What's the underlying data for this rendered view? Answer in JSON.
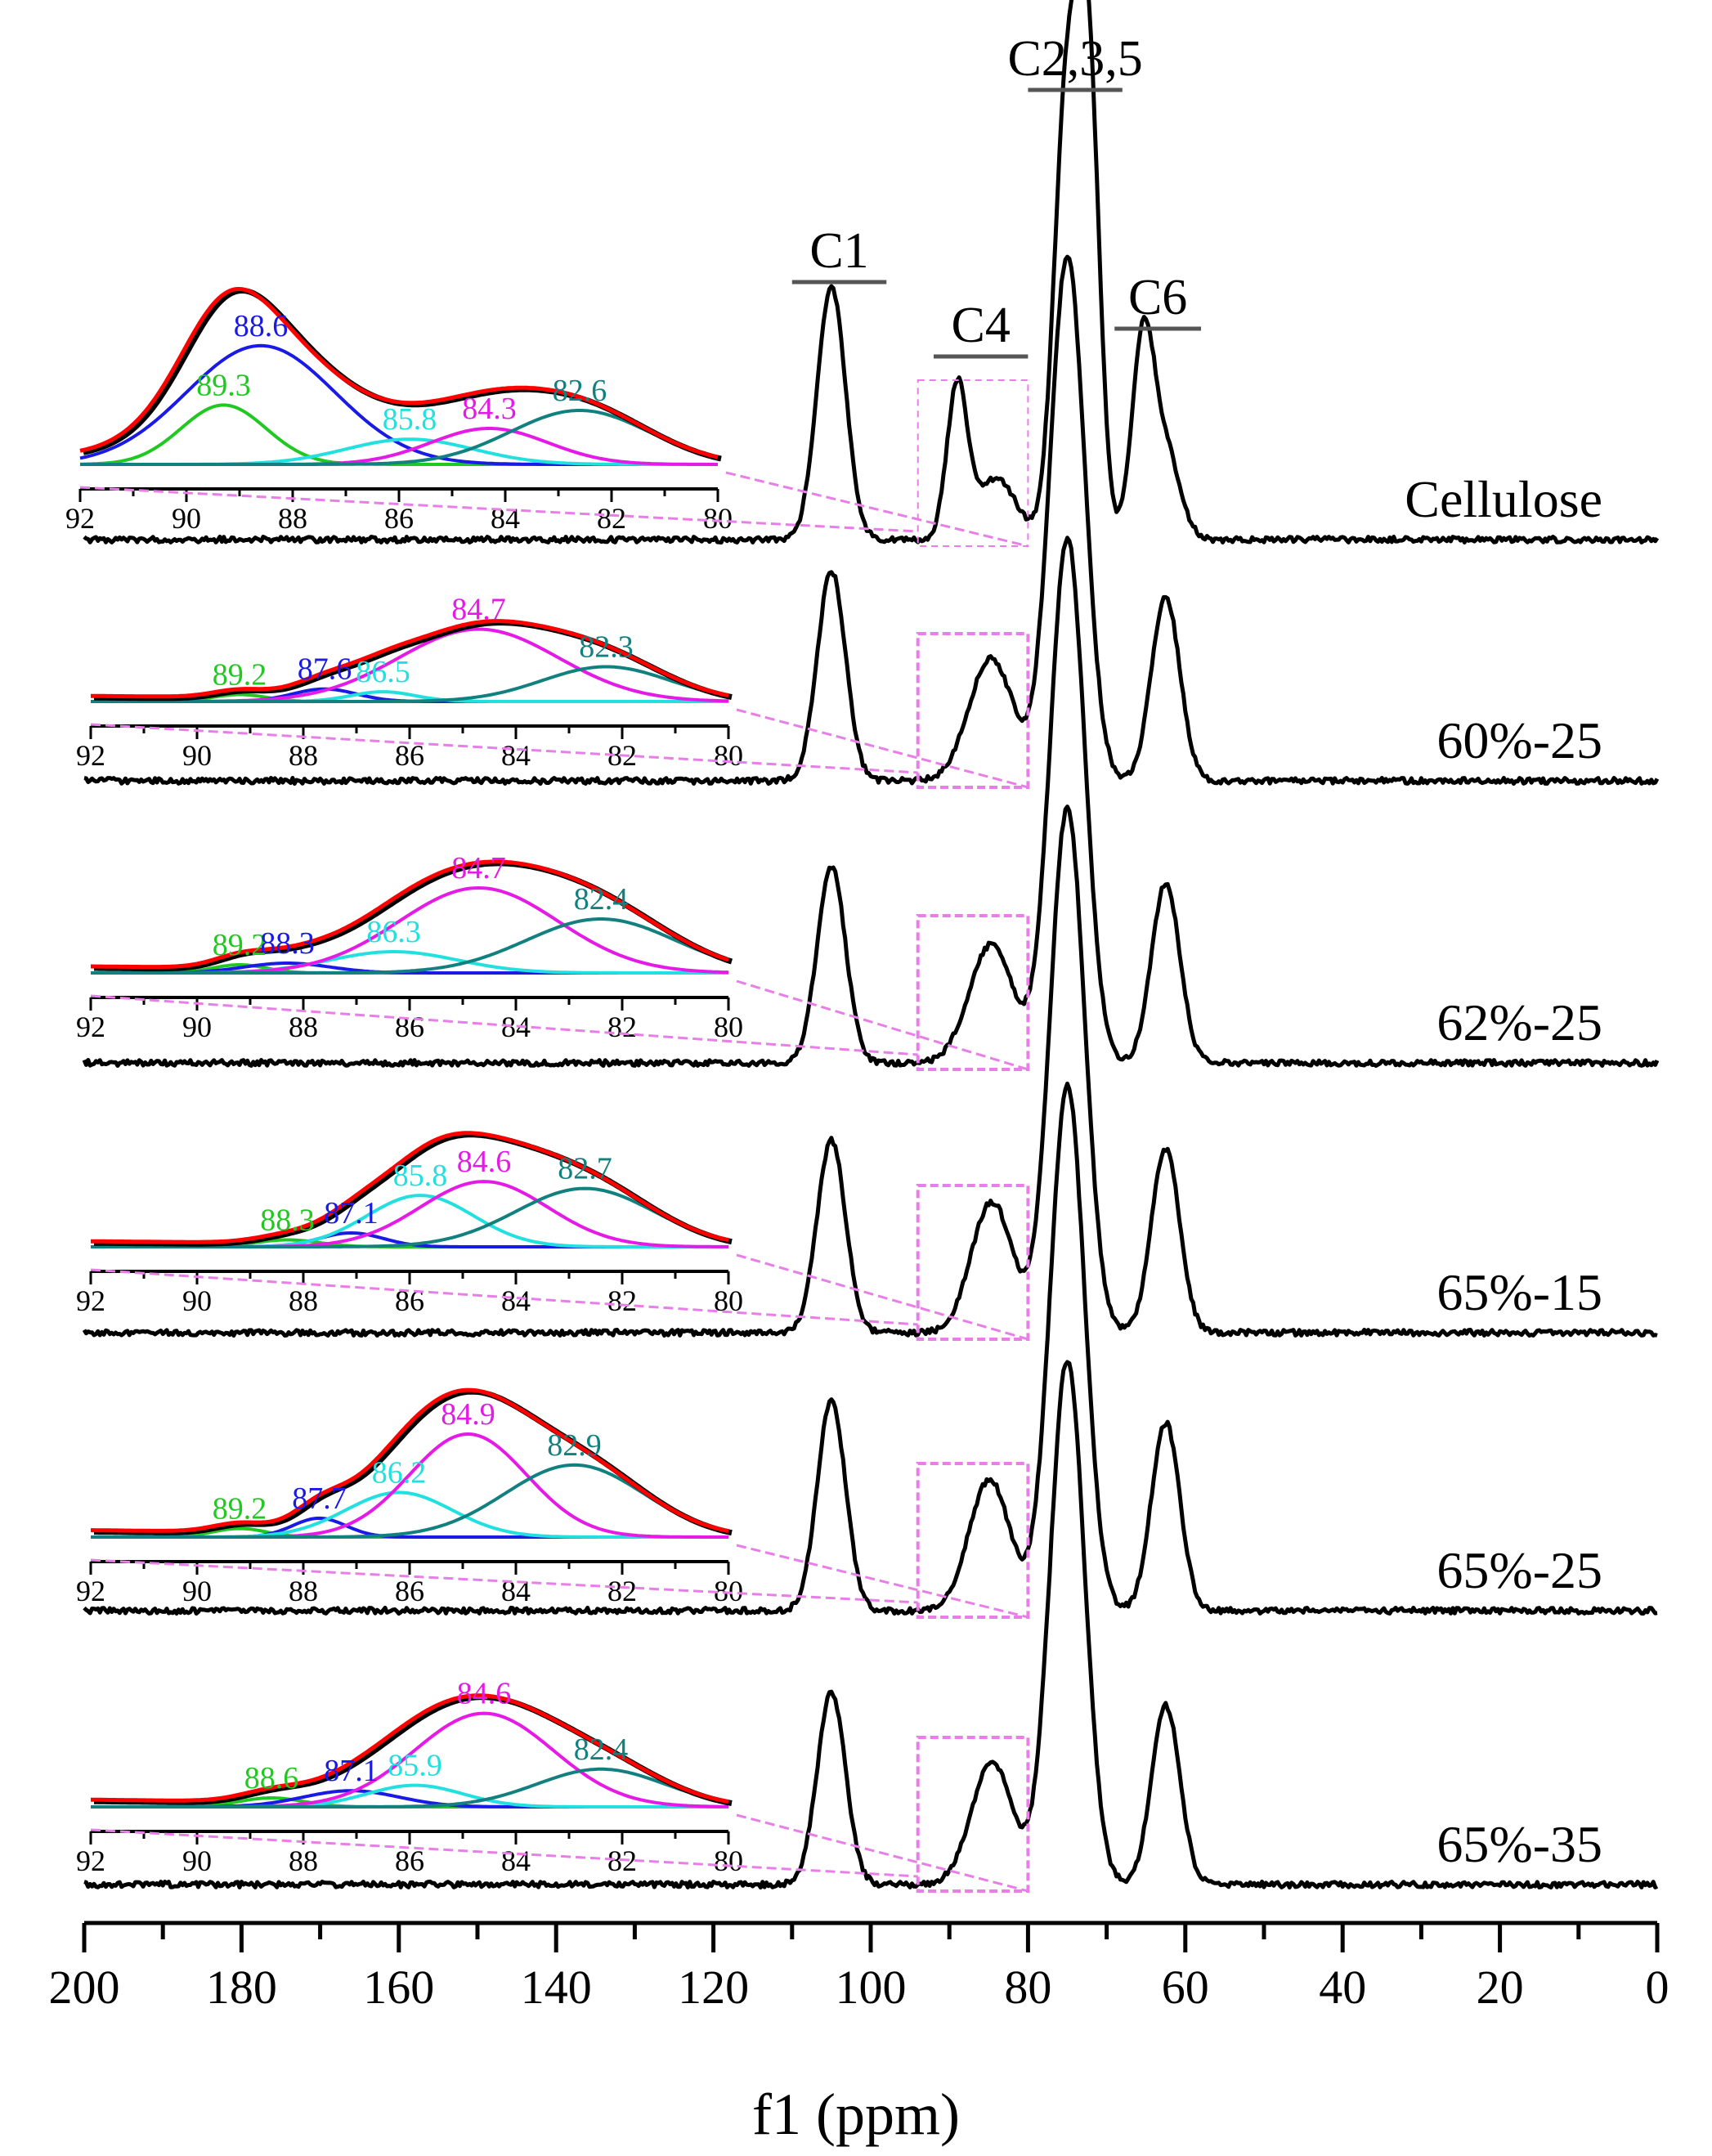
{
  "chart_data": {
    "type": "line",
    "xlabel": "f1 (ppm)",
    "xlim": [
      200,
      0
    ],
    "x_reversed": true,
    "x_ticks": [
      "200",
      "180",
      "160",
      "140",
      "120",
      "100",
      "80",
      "60",
      "40",
      "20",
      "0"
    ],
    "region_labels": [
      {
        "label": "C1",
        "from": 110,
        "to": 98
      },
      {
        "label": "C4",
        "from": 92,
        "to": 80
      },
      {
        "label": "C2,3,5",
        "from": 80,
        "to": 68
      },
      {
        "label": "C6",
        "from": 69,
        "to": 58
      }
    ],
    "series": [
      {
        "name": "Cellulose",
        "peaks": [
          {
            "ppm": 105,
            "h": 0.58,
            "w": 1.8
          },
          {
            "ppm": 89,
            "h": 0.35,
            "w": 1.3
          },
          {
            "ppm": 84,
            "h": 0.14,
            "w": 2.5
          },
          {
            "ppm": 75.1,
            "h": 1.0,
            "w": 1.6
          },
          {
            "ppm": 72.3,
            "h": 1.02,
            "w": 1.4
          },
          {
            "ppm": 65.4,
            "h": 0.45,
            "w": 1.4
          },
          {
            "ppm": 62.5,
            "h": 0.2,
            "w": 1.8
          }
        ],
        "inset": {
          "xlim": [
            92,
            80
          ],
          "tick_labels": [
            "92",
            "90",
            "88",
            "86",
            "84",
            "82",
            "80"
          ],
          "components": [
            {
              "label": "89.3",
              "center": 89.3,
              "height": 0.33,
              "width": 0.8,
              "color": "#22c822"
            },
            {
              "label": "88.6",
              "center": 88.6,
              "height": 0.66,
              "width": 1.4,
              "color": "#1a1ae6"
            },
            {
              "label": "85.8",
              "center": 85.8,
              "height": 0.14,
              "width": 1.2,
              "color": "#22e0e0"
            },
            {
              "label": "84.3",
              "center": 84.3,
              "height": 0.2,
              "width": 1.1,
              "color": "#e61ae6"
            },
            {
              "label": "82.6",
              "center": 82.6,
              "height": 0.3,
              "width": 1.3,
              "color": "#138080"
            }
          ]
        }
      },
      {
        "name": "60%-25",
        "peaks": [
          {
            "ppm": 105,
            "h": 0.48,
            "w": 1.8
          },
          {
            "ppm": 84.7,
            "h": 0.28,
            "w": 2.8
          },
          {
            "ppm": 75,
            "h": 1.2,
            "w": 2.2
          },
          {
            "ppm": 62.5,
            "h": 0.42,
            "w": 1.8
          }
        ],
        "inset": {
          "xlim": [
            92,
            80
          ],
          "tick_labels": [
            "92",
            "90",
            "88",
            "86",
            "84",
            "82",
            "80"
          ],
          "components": [
            {
              "label": "89.2",
              "center": 89.2,
              "height": 0.05,
              "width": 0.5,
              "color": "#22c822"
            },
            {
              "label": "87.6",
              "center": 87.6,
              "height": 0.09,
              "width": 0.6,
              "color": "#1a1ae6"
            },
            {
              "label": "86.5",
              "center": 86.5,
              "height": 0.07,
              "width": 0.6,
              "color": "#22e0e0"
            },
            {
              "label": "84.7",
              "center": 84.7,
              "height": 0.52,
              "width": 1.5,
              "color": "#e61ae6"
            },
            {
              "label": "82.3",
              "center": 82.3,
              "height": 0.25,
              "width": 1.2,
              "color": "#138080"
            }
          ]
        }
      },
      {
        "name": "62%-25",
        "peaks": [
          {
            "ppm": 105,
            "h": 0.45,
            "w": 1.8
          },
          {
            "ppm": 84.7,
            "h": 0.27,
            "w": 2.8
          },
          {
            "ppm": 75,
            "h": 1.2,
            "w": 2.2
          },
          {
            "ppm": 62.5,
            "h": 0.41,
            "w": 1.8
          }
        ],
        "inset": {
          "xlim": [
            92,
            80
          ],
          "tick_labels": [
            "92",
            "90",
            "88",
            "86",
            "84",
            "82",
            "80"
          ],
          "components": [
            {
              "label": "89.2",
              "center": 89.2,
              "height": 0.05,
              "width": 0.5,
              "color": "#22c822"
            },
            {
              "label": "88.3",
              "center": 88.3,
              "height": 0.06,
              "width": 0.8,
              "color": "#1a1ae6"
            },
            {
              "label": "86.3",
              "center": 86.3,
              "height": 0.13,
              "width": 1.2,
              "color": "#22e0e0"
            },
            {
              "label": "84.7",
              "center": 84.7,
              "height": 0.52,
              "width": 1.5,
              "color": "#e61ae6"
            },
            {
              "label": "82.4",
              "center": 82.4,
              "height": 0.33,
              "width": 1.4,
              "color": "#138080"
            }
          ]
        }
      },
      {
        "name": "65%-15",
        "peaks": [
          {
            "ppm": 105,
            "h": 0.44,
            "w": 1.8
          },
          {
            "ppm": 84.6,
            "h": 0.3,
            "w": 2.6
          },
          {
            "ppm": 75,
            "h": 1.2,
            "w": 2.2
          },
          {
            "ppm": 62.5,
            "h": 0.42,
            "w": 1.8
          }
        ],
        "inset": {
          "xlim": [
            92,
            80
          ],
          "tick_labels": [
            "92",
            "90",
            "88",
            "86",
            "84",
            "82",
            "80"
          ],
          "components": [
            {
              "label": "88.3",
              "center": 88.3,
              "height": 0.05,
              "width": 0.6,
              "color": "#22c822"
            },
            {
              "label": "87.1",
              "center": 87.1,
              "height": 0.1,
              "width": 0.6,
              "color": "#1a1ae6"
            },
            {
              "label": "85.8",
              "center": 85.8,
              "height": 0.37,
              "width": 1.0,
              "color": "#22e0e0"
            },
            {
              "label": "84.6",
              "center": 84.6,
              "height": 0.47,
              "width": 1.2,
              "color": "#e61ae6"
            },
            {
              "label": "82.7",
              "center": 82.7,
              "height": 0.42,
              "width": 1.3,
              "color": "#138080"
            }
          ]
        }
      },
      {
        "name": "65%-25",
        "peaks": [
          {
            "ppm": 105,
            "h": 0.48,
            "w": 1.8
          },
          {
            "ppm": 84.9,
            "h": 0.3,
            "w": 2.6
          },
          {
            "ppm": 75,
            "h": 1.2,
            "w": 2.2
          },
          {
            "ppm": 62.5,
            "h": 0.43,
            "w": 1.8
          }
        ],
        "inset": {
          "xlim": [
            92,
            80
          ],
          "tick_labels": [
            "92",
            "90",
            "88",
            "86",
            "84",
            "82",
            "80"
          ],
          "components": [
            {
              "label": "89.2",
              "center": 89.2,
              "height": 0.05,
              "width": 0.5,
              "color": "#22c822"
            },
            {
              "label": "87.7",
              "center": 87.7,
              "height": 0.11,
              "width": 0.5,
              "color": "#1a1ae6"
            },
            {
              "label": "86.2",
              "center": 86.2,
              "height": 0.26,
              "width": 1.0,
              "color": "#22e0e0"
            },
            {
              "label": "84.9",
              "center": 84.9,
              "height": 0.6,
              "width": 1.1,
              "color": "#e61ae6"
            },
            {
              "label": "82.9",
              "center": 82.9,
              "height": 0.42,
              "width": 1.3,
              "color": "#138080"
            }
          ]
        }
      },
      {
        "name": "65%-35",
        "peaks": [
          {
            "ppm": 105,
            "h": 0.44,
            "w": 1.8
          },
          {
            "ppm": 84.6,
            "h": 0.28,
            "w": 2.6
          },
          {
            "ppm": 75,
            "h": 1.2,
            "w": 2.2
          },
          {
            "ppm": 62.5,
            "h": 0.41,
            "w": 1.8
          }
        ],
        "inset": {
          "xlim": [
            92,
            80
          ],
          "tick_labels": [
            "92",
            "90",
            "88",
            "86",
            "84",
            "82",
            "80"
          ],
          "components": [
            {
              "label": "88.6",
              "center": 88.6,
              "height": 0.05,
              "width": 0.6,
              "color": "#22c822"
            },
            {
              "label": "87.1",
              "center": 87.1,
              "height": 0.09,
              "width": 0.9,
              "color": "#1a1ae6"
            },
            {
              "label": "85.9",
              "center": 85.9,
              "height": 0.12,
              "width": 0.9,
              "color": "#22e0e0"
            },
            {
              "label": "84.6",
              "center": 84.6,
              "height": 0.52,
              "width": 1.3,
              "color": "#e61ae6"
            },
            {
              "label": "82.4",
              "center": 82.4,
              "height": 0.21,
              "width": 1.2,
              "color": "#138080"
            }
          ]
        }
      }
    ],
    "colors": {
      "spectrum": "#000000",
      "fit_sum": "#ff0000",
      "guide": "#e87ee8",
      "region_bar": "#555555"
    }
  }
}
